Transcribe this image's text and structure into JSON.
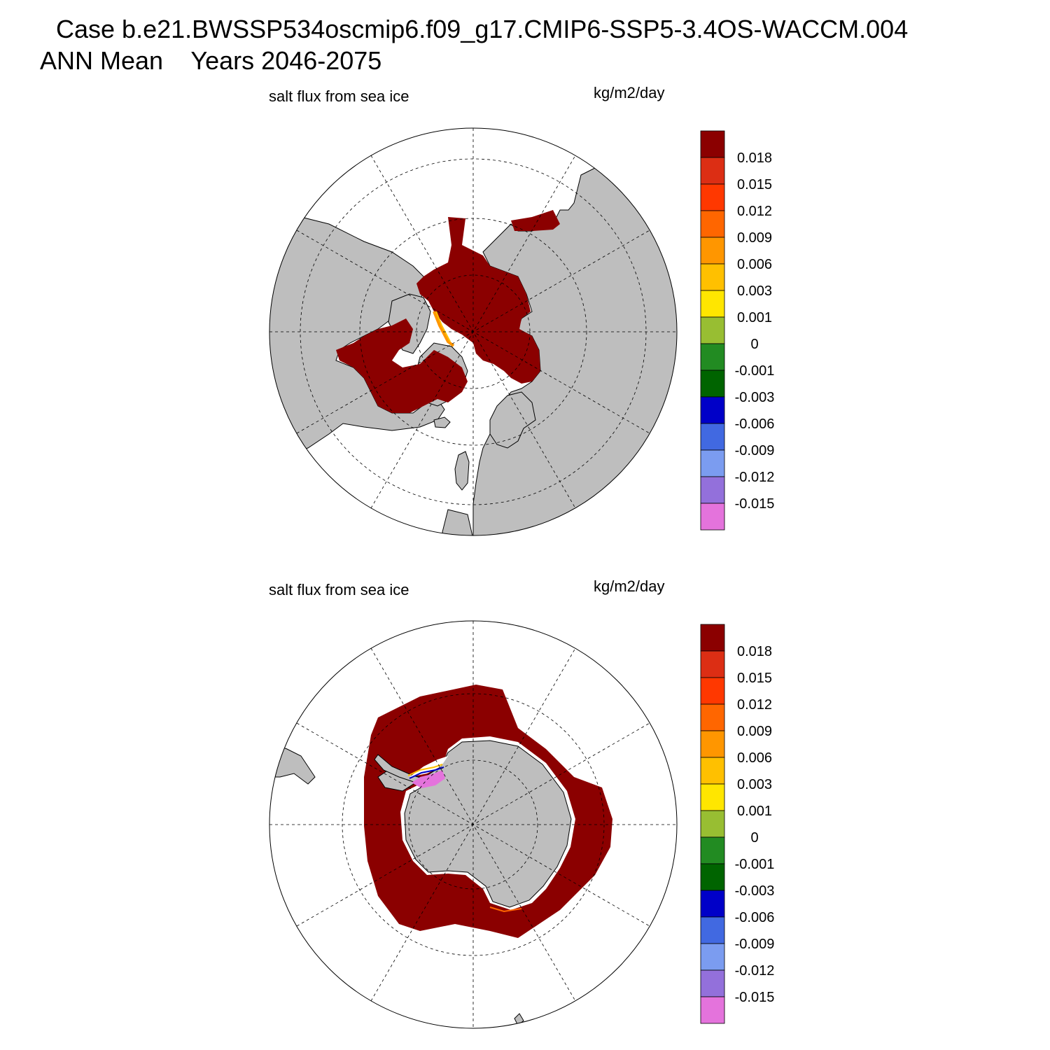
{
  "header": {
    "case_line": "Case b.e21.BWSSP534oscmip6.f09_g17.CMIP6-SSP5-3.4OS-WACCM.004",
    "period_line": "ANN Mean    Years 2046-2075"
  },
  "colors": {
    "land": "#bebebe",
    "ocean": "#ffffff",
    "ice_high": "#8b0000"
  },
  "colorbar": {
    "labels": [
      "0.018",
      "0.015",
      "0.012",
      "0.009",
      "0.006",
      "0.003",
      "0.001",
      "0",
      "-0.001",
      "-0.003",
      "-0.006",
      "-0.009",
      "-0.012",
      "-0.015"
    ],
    "colors": [
      "#8b0000",
      "#dc2e14",
      "#ff3800",
      "#ff6600",
      "#ff9600",
      "#ffc000",
      "#ffe600",
      "#98be32",
      "#228b22",
      "#006400",
      "#0000c8",
      "#4169e1",
      "#7b9cf0",
      "#9370db",
      "#e473dc"
    ]
  },
  "panels": [
    {
      "hemisphere": "north",
      "variable": "salt flux from sea ice",
      "units": "kg/m2/day"
    },
    {
      "hemisphere": "south",
      "variable": "salt flux from sea ice",
      "units": "kg/m2/day"
    }
  ]
}
